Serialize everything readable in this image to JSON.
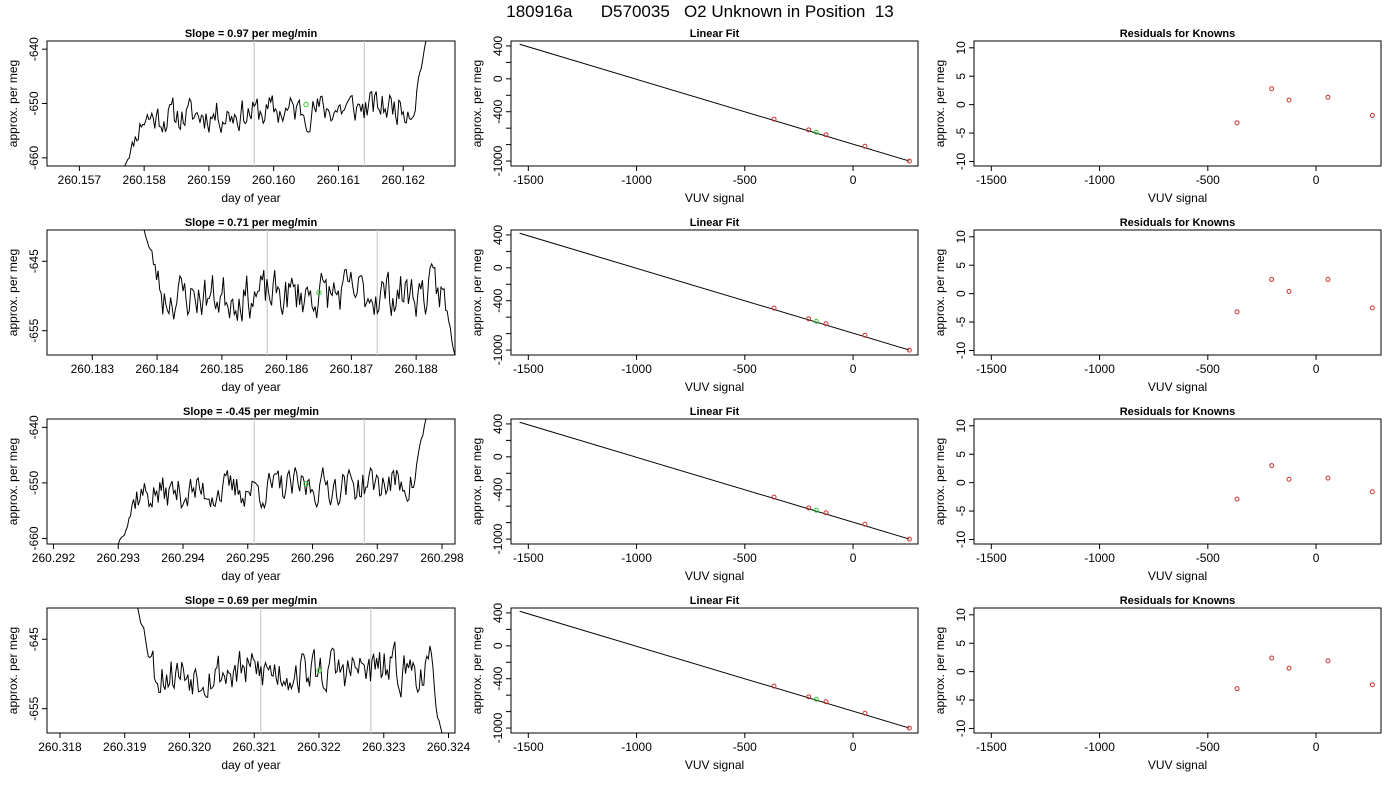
{
  "page_title": "180916a      D570035   O2 Unknown in Position  13",
  "colors": {
    "trace": "#000000",
    "fit_line": "#000000",
    "known_points": "#cc3333",
    "unknown_point": "#33cc33",
    "window_lines": "#cccccc",
    "frame": "#000000"
  },
  "chart_data": [
    {
      "type": "line",
      "panel": "trace-1",
      "title": "Slope =  0.97  per meg/min",
      "xlabel": "day of year",
      "ylabel": "approx. per meg",
      "xlim": [
        260.1565,
        260.1628
      ],
      "ylim": [
        -661.5,
        -638.5
      ],
      "xticks": [
        "260.157",
        "260.158",
        "260.159",
        "260.160",
        "260.161",
        "260.162"
      ],
      "yticks": [
        "-640",
        "-650",
        "-660"
      ],
      "window": [
        260.1597,
        260.1614
      ],
      "unknown_point": {
        "x": 260.1605,
        "y": -650.2
      },
      "trace_span": [
        260.1577,
        260.16235
      ],
      "trace_start": -661.5,
      "trace_end": -638.5,
      "trace_base": -651.5,
      "trace_rise": 2.6,
      "trace_noise": 2.2,
      "seed": 11
    },
    {
      "type": "line",
      "panel": "trace-2",
      "title": "Slope =  0.71  per meg/min",
      "xlabel": "day of year",
      "ylabel": "approx. per meg",
      "xlim": [
        260.1823,
        260.1886
      ],
      "ylim": [
        -658.5,
        -640.5
      ],
      "xticks": [
        "260.183",
        "260.184",
        "260.185",
        "260.186",
        "260.187",
        "260.188"
      ],
      "yticks": [
        "-645",
        "-655"
      ],
      "window": [
        260.1857,
        260.1874
      ],
      "unknown_point": {
        "x": 260.1865,
        "y": -649.5
      },
      "trace_span": [
        260.1838,
        260.1886
      ],
      "trace_start": -640.5,
      "trace_end": -658.5,
      "trace_base": -649.8,
      "trace_rise": 0.6,
      "trace_noise": 2.4,
      "seed": 23
    },
    {
      "type": "line",
      "panel": "trace-3",
      "title": "Slope =  -0.45  per meg/min",
      "xlabel": "day of year",
      "ylabel": "approx. per meg",
      "xlim": [
        260.2919,
        260.2982
      ],
      "ylim": [
        -661,
        -638.5
      ],
      "xticks": [
        "260.292",
        "260.293",
        "260.294",
        "260.295",
        "260.296",
        "260.297",
        "260.298"
      ],
      "yticks": [
        "-640",
        "-650",
        "-660"
      ],
      "window": [
        260.2951,
        260.2968
      ],
      "unknown_point": {
        "x": 260.2959,
        "y": -650.2
      },
      "trace_span": [
        260.293,
        260.29775
      ],
      "trace_start": -661,
      "trace_end": -638.5,
      "trace_base": -651.0,
      "trace_rise": 2.4,
      "trace_noise": 2.3,
      "seed": 37
    },
    {
      "type": "line",
      "panel": "trace-4",
      "title": "Slope =  0.69  per meg/min",
      "xlabel": "day of year",
      "ylabel": "approx. per meg",
      "xlim": [
        260.3178,
        260.3241
      ],
      "ylim": [
        -658.5,
        -640.5
      ],
      "xticks": [
        "260.318",
        "260.319",
        "260.320",
        "260.321",
        "260.322",
        "260.323",
        "260.324"
      ],
      "yticks": [
        "-645",
        "-655"
      ],
      "window": [
        260.3211,
        260.3228
      ],
      "unknown_point": {
        "x": 260.322,
        "y": -649.5
      },
      "trace_span": [
        260.3192,
        260.3239
      ],
      "trace_start": -640.5,
      "trace_end": -658.5,
      "trace_base": -649.6,
      "trace_rise": 0.5,
      "trace_noise": 2.3,
      "seed": 53
    },
    {
      "type": "scatter",
      "panel": "fit-1",
      "title": "Linear Fit",
      "xlabel": "VUV signal",
      "ylabel": "approx. per meg",
      "xlim": [
        -1580,
        300
      ],
      "ylim": [
        -1060,
        460
      ],
      "xticks": [
        -1500,
        -1000,
        -500,
        0
      ],
      "yticks": [
        400,
        0,
        -400,
        -1000
      ],
      "fit_line": [
        [
          -1540,
          420
        ],
        [
          260,
          -1000
        ]
      ],
      "knowns": [
        [
          -365,
          -490
        ],
        [
          -205,
          -620
        ],
        [
          -125,
          -680
        ],
        [
          55,
          -820
        ],
        [
          260,
          -1000
        ]
      ],
      "unknown": [
        [
          -170,
          -650
        ]
      ]
    },
    {
      "type": "scatter",
      "panel": "fit-2",
      "title": "Linear Fit",
      "xlabel": "VUV signal",
      "ylabel": "approx. per meg",
      "xlim": [
        -1580,
        300
      ],
      "ylim": [
        -1060,
        460
      ],
      "xticks": [
        -1500,
        -1000,
        -500,
        0
      ],
      "yticks": [
        400,
        0,
        -400,
        -1000
      ],
      "fit_line": [
        [
          -1540,
          420
        ],
        [
          260,
          -1000
        ]
      ],
      "knowns": [
        [
          -365,
          -490
        ],
        [
          -205,
          -620
        ],
        [
          -125,
          -680
        ],
        [
          55,
          -820
        ],
        [
          260,
          -1000
        ]
      ],
      "unknown": [
        [
          -170,
          -650
        ]
      ]
    },
    {
      "type": "scatter",
      "panel": "fit-3",
      "title": "Linear Fit",
      "xlabel": "VUV signal",
      "ylabel": "approx. per meg",
      "xlim": [
        -1580,
        300
      ],
      "ylim": [
        -1060,
        460
      ],
      "xticks": [
        -1500,
        -1000,
        -500,
        0
      ],
      "yticks": [
        400,
        0,
        -400,
        -1000
      ],
      "fit_line": [
        [
          -1540,
          420
        ],
        [
          260,
          -1000
        ]
      ],
      "knowns": [
        [
          -365,
          -490
        ],
        [
          -205,
          -620
        ],
        [
          -125,
          -680
        ],
        [
          55,
          -820
        ],
        [
          260,
          -1000
        ]
      ],
      "unknown": [
        [
          -170,
          -650
        ]
      ]
    },
    {
      "type": "scatter",
      "panel": "fit-4",
      "title": "Linear Fit",
      "xlabel": "VUV signal",
      "ylabel": "approx. per meg",
      "xlim": [
        -1580,
        300
      ],
      "ylim": [
        -1060,
        460
      ],
      "xticks": [
        -1500,
        -1000,
        -500,
        0
      ],
      "yticks": [
        400,
        0,
        -400,
        -1000
      ],
      "fit_line": [
        [
          -1540,
          420
        ],
        [
          260,
          -1000
        ]
      ],
      "knowns": [
        [
          -365,
          -490
        ],
        [
          -205,
          -620
        ],
        [
          -125,
          -680
        ],
        [
          55,
          -820
        ],
        [
          260,
          -1000
        ]
      ],
      "unknown": [
        [
          -170,
          -650
        ]
      ]
    },
    {
      "type": "scatter",
      "panel": "residuals-1",
      "title": "Residuals for Knowns",
      "xlabel": "VUV signal",
      "ylabel": "approx. per meg",
      "xlim": [
        -1580,
        300
      ],
      "ylim": [
        -10.8,
        11.2
      ],
      "xticks": [
        -1500,
        -1000,
        -500,
        0
      ],
      "yticks": [
        10,
        5,
        0,
        -5,
        -10
      ],
      "points": [
        [
          -365,
          -3.2
        ],
        [
          -205,
          2.8
        ],
        [
          -125,
          0.8
        ],
        [
          55,
          1.3
        ],
        [
          260,
          -1.9
        ]
      ]
    },
    {
      "type": "scatter",
      "panel": "residuals-2",
      "title": "Residuals for Knowns",
      "xlabel": "VUV signal",
      "ylabel": "approx. per meg",
      "xlim": [
        -1580,
        300
      ],
      "ylim": [
        -10.8,
        11.2
      ],
      "xticks": [
        -1500,
        -1000,
        -500,
        0
      ],
      "yticks": [
        10,
        5,
        0,
        -5,
        -10
      ],
      "points": [
        [
          -365,
          -3.2
        ],
        [
          -205,
          2.5
        ],
        [
          -125,
          0.4
        ],
        [
          55,
          2.5
        ],
        [
          260,
          -2.5
        ]
      ]
    },
    {
      "type": "scatter",
      "panel": "residuals-3",
      "title": "Residuals for Knowns",
      "xlabel": "VUV signal",
      "ylabel": "approx. per meg",
      "xlim": [
        -1580,
        300
      ],
      "ylim": [
        -10.8,
        11.2
      ],
      "xticks": [
        -1500,
        -1000,
        -500,
        0
      ],
      "yticks": [
        10,
        5,
        0,
        -5,
        -10
      ],
      "points": [
        [
          -365,
          -2.9
        ],
        [
          -205,
          3.0
        ],
        [
          -125,
          0.6
        ],
        [
          55,
          0.8
        ],
        [
          260,
          -1.6
        ]
      ]
    },
    {
      "type": "scatter",
      "panel": "residuals-4",
      "title": "Residuals for Knowns",
      "xlabel": "VUV signal",
      "ylabel": "approx. per meg",
      "xlim": [
        -1580,
        300
      ],
      "ylim": [
        -10.8,
        11.2
      ],
      "xticks": [
        -1500,
        -1000,
        -500,
        0
      ],
      "yticks": [
        10,
        5,
        0,
        -5,
        -10
      ],
      "points": [
        [
          -365,
          -3.0
        ],
        [
          -205,
          2.4
        ],
        [
          -125,
          0.6
        ],
        [
          55,
          1.9
        ],
        [
          260,
          -2.3
        ]
      ]
    }
  ]
}
